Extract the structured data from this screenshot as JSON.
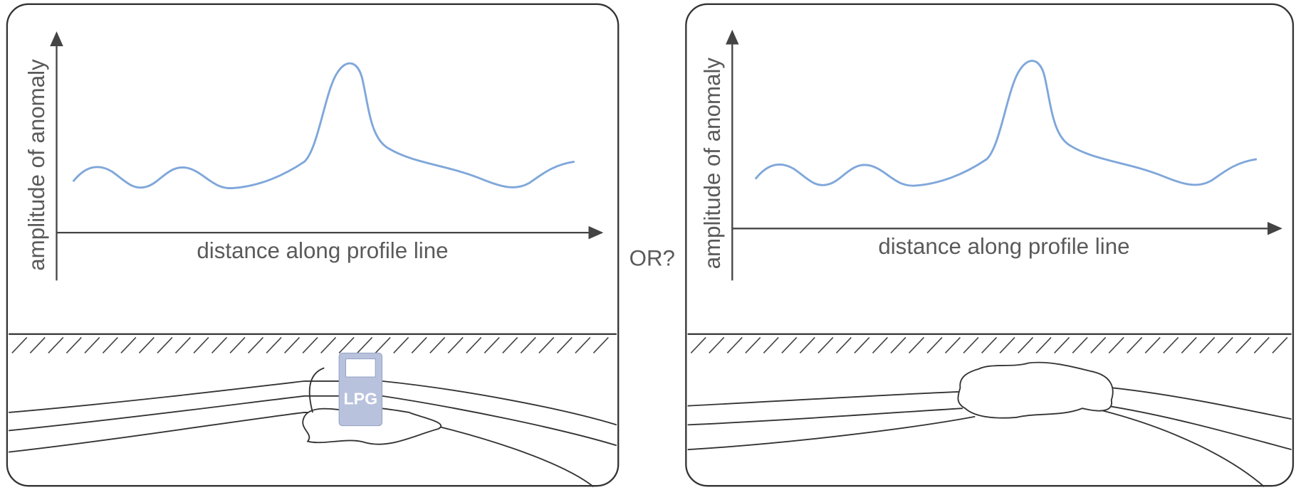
{
  "left_panel": {
    "y_axis_label": "amplitude of anomaly",
    "x_axis_label": "distance along profile line",
    "tank_label": "LPG"
  },
  "separator": "OR?",
  "right_panel": {
    "y_axis_label": "amplitude of anomaly",
    "x_axis_label": "distance along profile line"
  }
}
